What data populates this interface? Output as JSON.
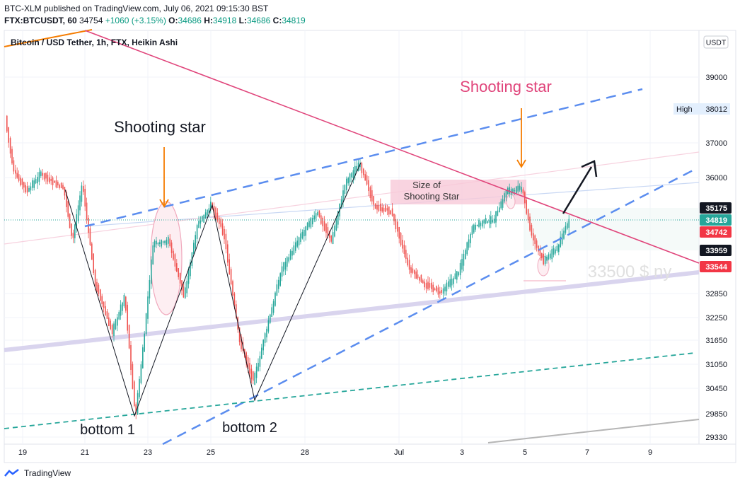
{
  "header": {
    "publish_line": "BTC-XLM published on TradingView.com, July 06, 2021 09:15:30 BST",
    "symbol": "FTX:BTCUSDT, 60",
    "last": "34754",
    "change": "+1060 (+3.15%)",
    "o_label": "O:",
    "o": "34686",
    "h_label": "H:",
    "h": "34918",
    "l_label": "L:",
    "l": "34686",
    "c_label": "C:",
    "c": "34819"
  },
  "footer": {
    "brand": "TradingView"
  },
  "chart_data": {
    "type": "candlestick",
    "title": "Bitcoin / USD Tether, 1h, FTX, Heikin Ashi",
    "currency": "USDT",
    "y_ticks": [
      39000,
      38012,
      37000,
      36000,
      35175,
      34819,
      34742,
      33959,
      33544,
      32850,
      32250,
      31650,
      31050,
      30450,
      29850,
      29330
    ],
    "y_axis_labels": [
      "39000",
      "37000",
      "36000",
      "32850",
      "32250",
      "31650",
      "31050",
      "30450",
      "29850",
      "29330"
    ],
    "x_ticks": [
      "19",
      "21",
      "23",
      "25",
      "28",
      "Jul",
      "3",
      "5",
      "7",
      "9"
    ],
    "ylim": [
      29100,
      39700
    ],
    "price_tags": [
      {
        "label": "High",
        "value": "38012",
        "color": "#e3effd",
        "text": "#131722"
      },
      {
        "value": "35175",
        "color": "#131722",
        "text": "#ffffff"
      },
      {
        "value": "34819",
        "color": "#26a69a",
        "text": "#ffffff"
      },
      {
        "value": "34742",
        "color": "#f23645",
        "text": "#ffffff"
      },
      {
        "value": "33959",
        "color": "#131722",
        "text": "#ffffff"
      },
      {
        "value": "33544",
        "color": "#f23645",
        "text": "#ffffff"
      }
    ],
    "annotations": [
      {
        "text": "Shooting star",
        "color": "#131722"
      },
      {
        "text": "Shooting star",
        "color": "#e0457b"
      },
      {
        "text": "bottom 1",
        "color": "#131722"
      },
      {
        "text": "bottom 2",
        "color": "#131722"
      },
      {
        "text": "Size of",
        "color": "#333333"
      },
      {
        "text": "Shooting  Star",
        "color": "#333333"
      },
      {
        "text": "33500 $ ny",
        "color": "#e0e0e0"
      }
    ],
    "colors": {
      "up": "#26a69a",
      "down": "#ef5350",
      "trend": "#e0457b",
      "channel": "#5b8def",
      "support": "#26a69a"
    }
  }
}
